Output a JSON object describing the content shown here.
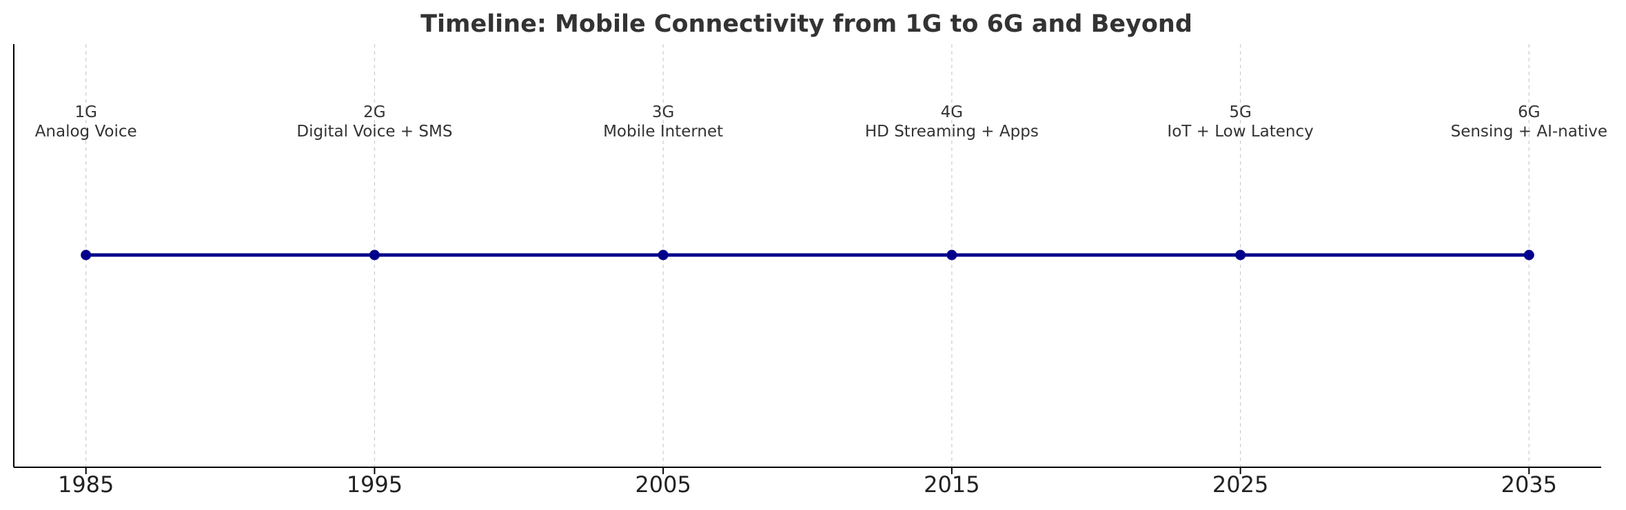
{
  "chart_data": {
    "type": "line",
    "title": "Timeline: Mobile Connectivity from 1G to 6G and Beyond",
    "xlabel": "",
    "ylabel": "",
    "xlim": [
      1982.5,
      2037.5
    ],
    "x_ticks": [
      1985,
      1995,
      2005,
      2015,
      2025,
      2035
    ],
    "x_tick_labels": [
      "1985",
      "1995",
      "2005",
      "2015",
      "2025",
      "2035"
    ],
    "grid": "vertical dashed at events",
    "series": [
      {
        "x": [
          1985,
          1995,
          2005,
          2015,
          2025,
          2035
        ],
        "y": [
          0,
          0,
          0,
          0,
          0,
          0
        ],
        "color": "#00008b"
      }
    ],
    "events": [
      {
        "year": 1985,
        "generation": "1G",
        "description": "Analog Voice"
      },
      {
        "year": 1995,
        "generation": "2G",
        "description": "Digital Voice + SMS"
      },
      {
        "year": 2005,
        "generation": "3G",
        "description": "Mobile Internet"
      },
      {
        "year": 2015,
        "generation": "4G",
        "description": "HD Streaming + Apps"
      },
      {
        "year": 2025,
        "generation": "5G",
        "description": "IoT + Low Latency"
      },
      {
        "year": 2035,
        "generation": "6G",
        "description": "Sensing + AI-native"
      }
    ]
  },
  "colors": {
    "line": "#00008b",
    "grid": "#cccccc",
    "axis": "#000000",
    "title": "#333333"
  }
}
